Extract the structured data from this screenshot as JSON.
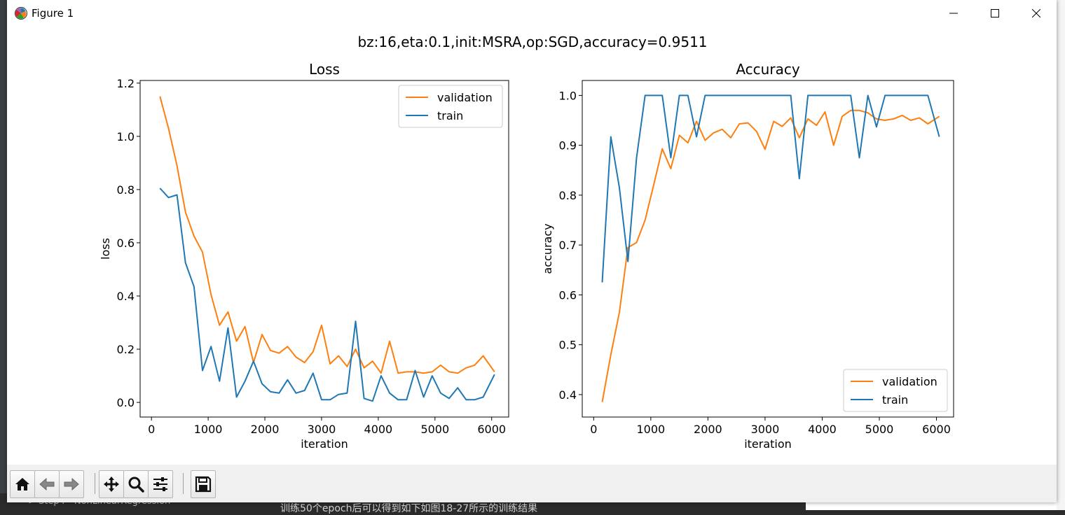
{
  "window": {
    "title": "Figure 1"
  },
  "figure": {
    "suptitle": "bz:16,eta:0.1,init:MSRA,op:SGD,accuracy=0.9511"
  },
  "background": {
    "caption": "训练50个epoch后可以得到如下如图18-27所示的训练结果",
    "tree_item": "> Step4 - NonLinearRegression"
  },
  "toolbar": {
    "buttons": [
      {
        "name": "home-button",
        "icon": "home-icon"
      },
      {
        "name": "back-button",
        "icon": "arrow-left-icon"
      },
      {
        "name": "forward-button",
        "icon": "arrow-right-icon"
      },
      {
        "name": "pan-button",
        "icon": "move-icon"
      },
      {
        "name": "zoom-button",
        "icon": "magnifier-icon"
      },
      {
        "name": "configure-subplots-button",
        "icon": "sliders-icon"
      },
      {
        "name": "save-button",
        "icon": "floppy-disk-icon"
      }
    ]
  },
  "colors": {
    "validation": "#ff7f0e",
    "train": "#1f77b4"
  },
  "chart_data": [
    {
      "type": "line",
      "title": "Loss",
      "xlabel": "iteration",
      "ylabel": "loss",
      "xlim": [
        -200,
        6300
      ],
      "ylim": [
        -0.055,
        1.21
      ],
      "xticks": [
        0,
        1000,
        2000,
        3000,
        4000,
        5000,
        6000
      ],
      "xtick_labels": [
        "0",
        "1000",
        "2000",
        "3000",
        "4000",
        "5000",
        "6000"
      ],
      "yticks": [
        0.0,
        0.2,
        0.4,
        0.6,
        0.8,
        1.0,
        1.2
      ],
      "ytick_labels": [
        "0.0",
        "0.2",
        "0.4",
        "0.6",
        "0.8",
        "1.0",
        "1.2"
      ],
      "legend_position": "top-right",
      "series": [
        {
          "name": "validation",
          "x": [
            150,
            300,
            450,
            600,
            750,
            900,
            1050,
            1200,
            1350,
            1500,
            1650,
            1800,
            1950,
            2100,
            2250,
            2400,
            2550,
            2700,
            2850,
            3000,
            3150,
            3300,
            3450,
            3600,
            3750,
            3900,
            4050,
            4200,
            4350,
            4500,
            4650,
            4800,
            4950,
            5100,
            5250,
            5400,
            5550,
            5700,
            5850,
            6050
          ],
          "y": [
            1.15,
            1.03,
            0.89,
            0.715,
            0.625,
            0.565,
            0.405,
            0.29,
            0.34,
            0.23,
            0.285,
            0.15,
            0.255,
            0.195,
            0.185,
            0.21,
            0.17,
            0.15,
            0.19,
            0.29,
            0.145,
            0.175,
            0.135,
            0.2,
            0.13,
            0.155,
            0.11,
            0.23,
            0.11,
            0.115,
            0.115,
            0.11,
            0.115,
            0.14,
            0.115,
            0.11,
            0.13,
            0.14,
            0.175,
            0.115
          ]
        },
        {
          "name": "train",
          "x": [
            150,
            300,
            450,
            600,
            750,
            900,
            1050,
            1200,
            1350,
            1500,
            1650,
            1800,
            1950,
            2100,
            2250,
            2400,
            2550,
            2700,
            2850,
            3000,
            3150,
            3300,
            3450,
            3600,
            3750,
            3900,
            4050,
            4200,
            4350,
            4500,
            4650,
            4800,
            4950,
            5100,
            5250,
            5400,
            5550,
            5700,
            5850,
            6050
          ],
          "y": [
            0.805,
            0.77,
            0.78,
            0.525,
            0.435,
            0.12,
            0.21,
            0.08,
            0.28,
            0.02,
            0.08,
            0.155,
            0.07,
            0.04,
            0.035,
            0.085,
            0.035,
            0.045,
            0.11,
            0.01,
            0.01,
            0.03,
            0.035,
            0.305,
            0.015,
            0.005,
            0.1,
            0.035,
            0.01,
            0.01,
            0.12,
            0.02,
            0.1,
            0.035,
            0.015,
            0.055,
            0.01,
            0.01,
            0.02,
            0.105
          ]
        }
      ]
    },
    {
      "type": "line",
      "title": "Accuracy",
      "xlabel": "iteration",
      "ylabel": "accuracy",
      "xlim": [
        -200,
        6300
      ],
      "ylim": [
        0.355,
        1.03
      ],
      "xticks": [
        0,
        1000,
        2000,
        3000,
        4000,
        5000,
        6000
      ],
      "xtick_labels": [
        "0",
        "1000",
        "2000",
        "3000",
        "4000",
        "5000",
        "6000"
      ],
      "yticks": [
        0.4,
        0.5,
        0.6,
        0.7,
        0.8,
        0.9,
        1.0
      ],
      "ytick_labels": [
        "0.4",
        "0.5",
        "0.6",
        "0.7",
        "0.8",
        "0.9",
        "1.0"
      ],
      "legend_position": "bottom-right",
      "series": [
        {
          "name": "validation",
          "x": [
            150,
            300,
            450,
            600,
            750,
            900,
            1050,
            1200,
            1350,
            1500,
            1650,
            1800,
            1950,
            2100,
            2250,
            2400,
            2550,
            2700,
            2850,
            3000,
            3150,
            3300,
            3450,
            3600,
            3750,
            3900,
            4050,
            4200,
            4350,
            4500,
            4650,
            4800,
            4950,
            5100,
            5250,
            5400,
            5550,
            5700,
            5850,
            6050
          ],
          "y": [
            0.385,
            0.48,
            0.565,
            0.695,
            0.705,
            0.75,
            0.82,
            0.893,
            0.853,
            0.92,
            0.905,
            0.948,
            0.91,
            0.925,
            0.932,
            0.915,
            0.943,
            0.945,
            0.928,
            0.892,
            0.948,
            0.938,
            0.955,
            0.915,
            0.953,
            0.94,
            0.967,
            0.9,
            0.958,
            0.97,
            0.97,
            0.965,
            0.953,
            0.95,
            0.953,
            0.96,
            0.95,
            0.955,
            0.943,
            0.958
          ]
        },
        {
          "name": "train",
          "x": [
            150,
            300,
            450,
            600,
            750,
            900,
            1050,
            1200,
            1350,
            1500,
            1650,
            1800,
            1950,
            2100,
            2250,
            2400,
            2550,
            2700,
            2850,
            3000,
            3150,
            3300,
            3450,
            3600,
            3750,
            3900,
            4050,
            4200,
            4350,
            4500,
            4650,
            4800,
            4950,
            5100,
            5250,
            5400,
            5550,
            5700,
            5850,
            6050
          ],
          "y": [
            0.625,
            0.917,
            0.815,
            0.667,
            0.875,
            1.0,
            1.0,
            1.0,
            0.875,
            1.0,
            1.0,
            0.917,
            1.0,
            1.0,
            1.0,
            1.0,
            1.0,
            1.0,
            1.0,
            1.0,
            1.0,
            1.0,
            1.0,
            0.833,
            1.0,
            1.0,
            1.0,
            1.0,
            1.0,
            1.0,
            0.875,
            1.0,
            0.937,
            1.0,
            1.0,
            1.0,
            1.0,
            1.0,
            1.0,
            0.917
          ]
        }
      ]
    }
  ]
}
